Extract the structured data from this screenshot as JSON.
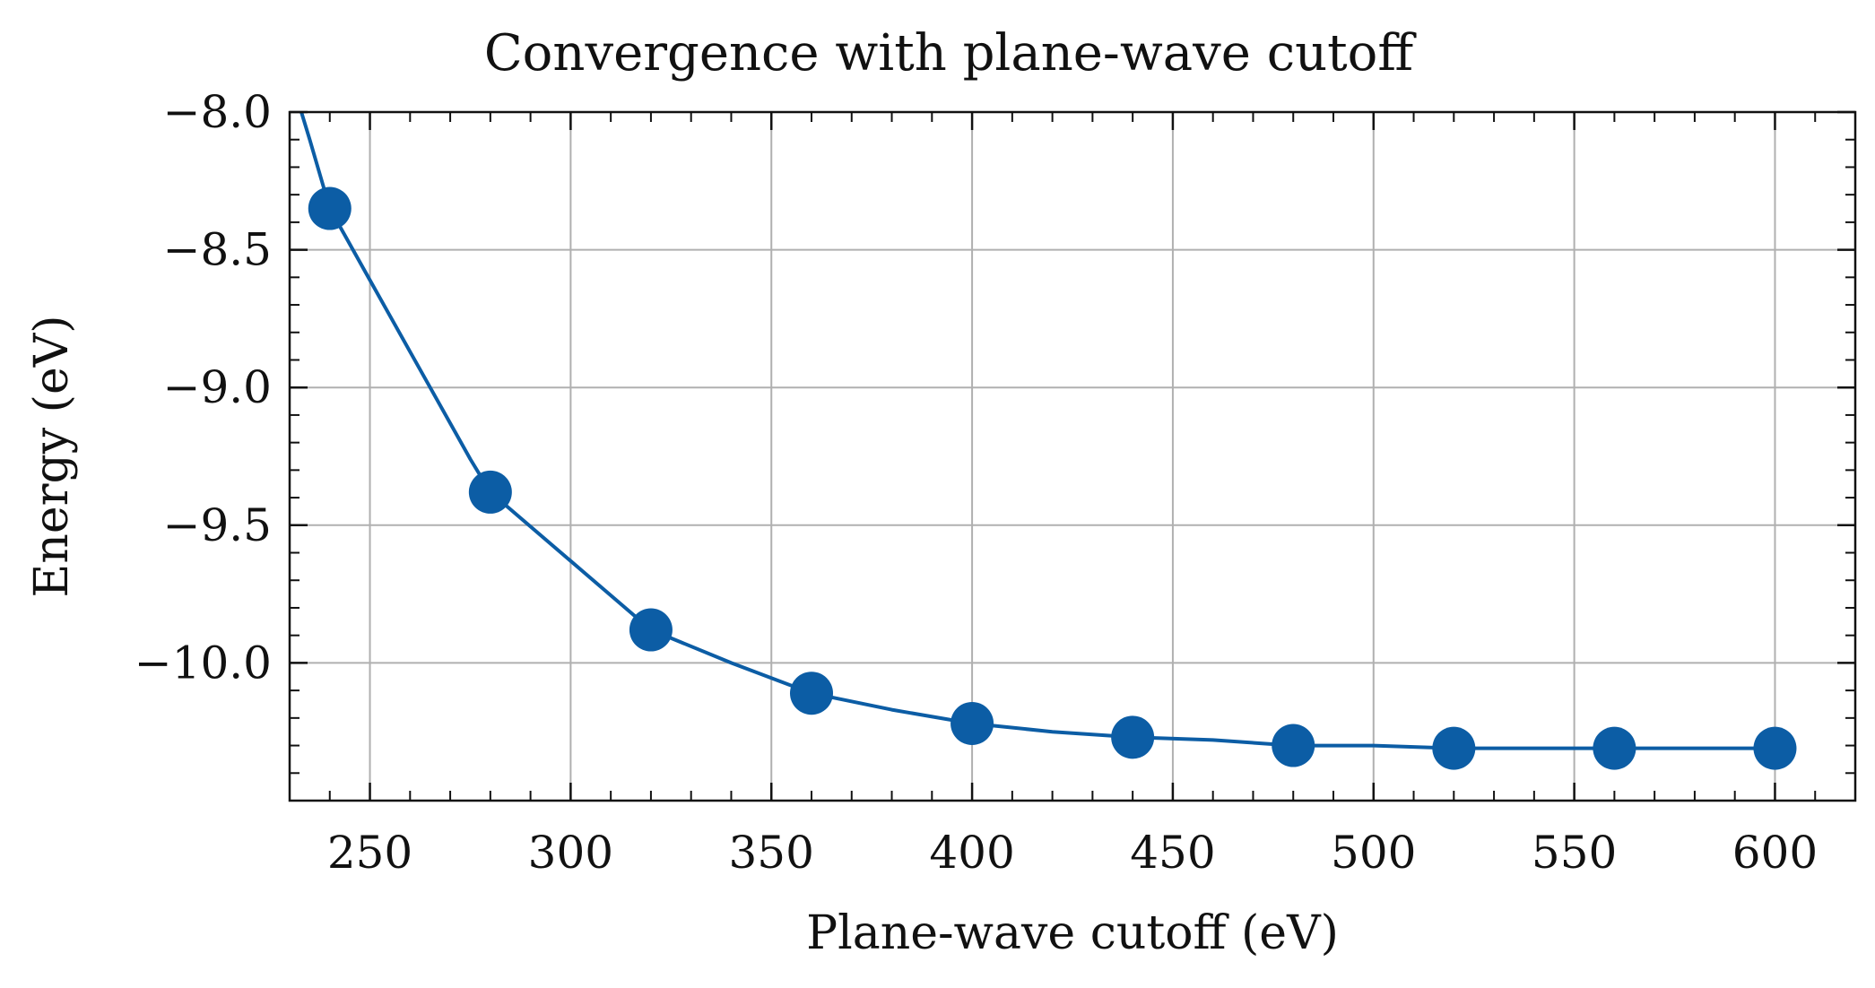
{
  "chart_data": {
    "type": "line",
    "title": "Convergence with plane-wave cutoff",
    "xlabel": "Plane-wave cutoff (eV)",
    "ylabel": "Energy (eV)",
    "xlim": [
      230,
      620
    ],
    "ylim": [
      -10.5,
      -8.0
    ],
    "xticks": [
      250,
      300,
      350,
      400,
      450,
      500,
      550,
      600
    ],
    "xtick_labels": [
      "250",
      "300",
      "350",
      "400",
      "450",
      "500",
      "550",
      "600"
    ],
    "yticks": [
      -8.0,
      -8.5,
      -9.0,
      -9.5,
      -10.0
    ],
    "ytick_labels": [
      "−8.0",
      "−8.5",
      "−9.0",
      "−9.5",
      "−10.0"
    ],
    "grid": true,
    "legend": "none",
    "series": [
      {
        "color": "#0C5DA5",
        "markers": "circle",
        "x": [
          240,
          280,
          320,
          360,
          400,
          440,
          480,
          520,
          560,
          600
        ],
        "y": [
          -8.35,
          -9.38,
          -9.88,
          -10.11,
          -10.22,
          -10.27,
          -10.3,
          -10.31,
          -10.31,
          -10.31
        ]
      }
    ],
    "curve": {
      "x": [
        230,
        235,
        240,
        245,
        250,
        255,
        260,
        265,
        270,
        275,
        280,
        300,
        320,
        340,
        360,
        380,
        400,
        420,
        440,
        460,
        480,
        500,
        520,
        540,
        560,
        580,
        600
      ],
      "y": [
        -7.86,
        -8.1,
        -8.35,
        -8.48,
        -8.61,
        -8.74,
        -8.87,
        -9.0,
        -9.13,
        -9.26,
        -9.38,
        -9.63,
        -9.88,
        -10.0,
        -10.11,
        -10.17,
        -10.22,
        -10.25,
        -10.27,
        -10.28,
        -10.3,
        -10.3,
        -10.31,
        -10.31,
        -10.31,
        -10.31,
        -10.31
      ]
    }
  }
}
